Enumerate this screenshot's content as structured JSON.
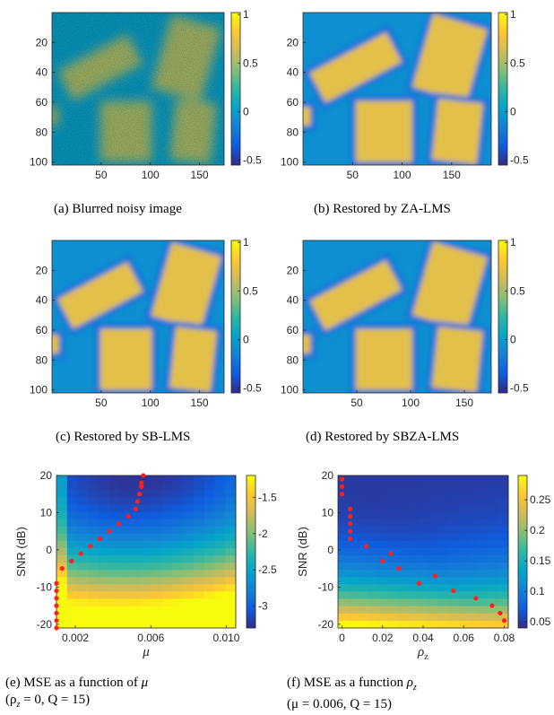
{
  "figure": {
    "colorbar_colors": [
      "#352a87",
      "#0f5cdd",
      "#1481d6",
      "#06a4ca",
      "#2eb7a4",
      "#87bf77",
      "#d1bb59",
      "#fec832",
      "#f9fb0e"
    ],
    "image_panels": [
      {
        "id": "a",
        "caption": "(a)  Blurred noisy image",
        "type": "heatmap",
        "style": "noisy",
        "xticks": [
          "50",
          "100",
          "150"
        ],
        "yticks": [
          "20",
          "40",
          "60",
          "80",
          "100"
        ],
        "cbar_ticks": [
          "1",
          "0.5",
          "0",
          "-0.5"
        ],
        "xmax": 175
      },
      {
        "id": "b",
        "caption": "(b)  Restored by ZA-LMS",
        "type": "heatmap",
        "style": "restored",
        "xticks": [
          "50",
          "100",
          "150"
        ],
        "yticks": [
          "20",
          "40",
          "60",
          "80",
          "100"
        ],
        "cbar_ticks": [
          "1",
          "0.5",
          "0",
          "-0.5"
        ],
        "xmax": 190
      },
      {
        "id": "c",
        "caption": "(c)  Restored by SB-LMS",
        "type": "heatmap",
        "style": "restored",
        "xticks": [
          "50",
          "100",
          "150"
        ],
        "yticks": [
          "20",
          "40",
          "60",
          "80",
          "100"
        ],
        "cbar_ticks": [
          "1",
          "0.5",
          "0",
          "-0.5"
        ],
        "xmax": 175
      },
      {
        "id": "d",
        "caption": "(d)  Restored by SBZA-LMS",
        "type": "heatmap",
        "style": "restored",
        "xticks": [
          "50",
          "100",
          "150"
        ],
        "yticks": [
          "20",
          "40",
          "60",
          "80",
          "100"
        ],
        "cbar_ticks": [
          "1",
          "0.5",
          "0",
          "-0.5"
        ],
        "xmax": 175
      }
    ]
  },
  "chart_data": [
    {
      "id": "e",
      "type": "heatmap",
      "caption_line1": "(e)  MSE as a function of ",
      "caption_sym1": "μ",
      "caption_line2": "(ρ",
      "caption_line2_rest": " = 0, Q = 15)",
      "xlabel": "μ",
      "ylabel": "SNR (dB)",
      "xlim": [
        0.001,
        0.0105
      ],
      "ylim": [
        -21,
        20
      ],
      "xticks": [
        "0.002",
        "0.006",
        "0.010"
      ],
      "yticks": [
        "20",
        "10",
        "0",
        "-10",
        "-20"
      ],
      "cbar_ticks": [
        "-1.5",
        "-2",
        "-2.5",
        "-3"
      ],
      "cbar_range": [
        -3.3,
        -1.2
      ],
      "optimal_points": {
        "x": [
          0.001,
          0.001,
          0.001,
          0.001,
          0.001,
          0.001,
          0.001,
          0.0013,
          0.0018,
          0.0023,
          0.0028,
          0.0033,
          0.0038,
          0.0043,
          0.0048,
          0.0052,
          0.0053,
          0.0054,
          0.0055,
          0.0055,
          0.0056
        ],
        "y": [
          -21,
          -19,
          -17,
          -15,
          -13,
          -11,
          -9,
          -5,
          -3,
          -1,
          1,
          3,
          5,
          7,
          9,
          11,
          13,
          15,
          17,
          18,
          20
        ]
      }
    },
    {
      "id": "f",
      "type": "heatmap",
      "caption_line1": "(f)  MSE as a function ",
      "caption_sym1": "ρ",
      "caption_line2": "(μ = 0.006, Q = 15)",
      "xlabel": "ρ",
      "xlabel_sub": "z",
      "ylabel": "SNR (dB)",
      "xlim": [
        -0.002,
        0.082
      ],
      "ylim": [
        -21,
        20
      ],
      "xticks": [
        "0",
        "0.02",
        "0.04",
        "0.06",
        "0.08"
      ],
      "yticks": [
        "20",
        "10",
        "0",
        "-10",
        "-20"
      ],
      "cbar_ticks": [
        "0.25",
        "0.2",
        "0.15",
        "0.1",
        "0.05"
      ],
      "cbar_range": [
        0.04,
        0.29
      ],
      "optimal_points": {
        "x": [
          0,
          0,
          0,
          0.004,
          0.004,
          0.004,
          0.004,
          0.004,
          0.012,
          0.02,
          0.024,
          0.028,
          0.038,
          0.046,
          0.055,
          0.066,
          0.074,
          0.078,
          0.08
        ],
        "y": [
          19,
          17,
          15,
          11,
          9,
          7,
          5,
          3,
          1,
          -3,
          -1,
          -5,
          -9,
          -7,
          -11,
          -13,
          -15,
          -17,
          -19
        ]
      }
    }
  ]
}
